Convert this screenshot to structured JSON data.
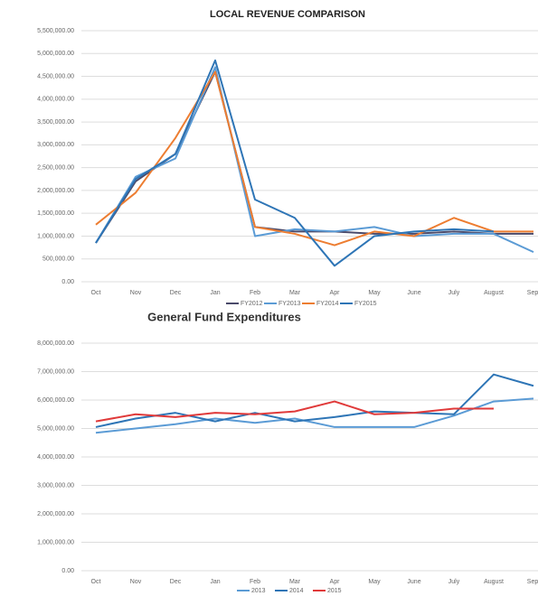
{
  "chart_data": [
    {
      "type": "line",
      "title": "LOCAL REVENUE COMPARISON",
      "categories": [
        "Oct",
        "Nov",
        "Dec",
        "Jan",
        "Feb",
        "Mar",
        "Apr",
        "May",
        "June",
        "July",
        "August",
        "Sept"
      ],
      "ylim": [
        0,
        5500000
      ],
      "yticks": [
        {
          "value": 0,
          "label": "0.00"
        },
        {
          "value": 500000,
          "label": "500,000.00"
        },
        {
          "value": 1000000,
          "label": "1,000,000.00"
        },
        {
          "value": 1500000,
          "label": "1,500,000.00"
        },
        {
          "value": 2000000,
          "label": "2,000,000.00"
        },
        {
          "value": 2500000,
          "label": "2,500,000.00"
        },
        {
          "value": 3000000,
          "label": "3,000,000.00"
        },
        {
          "value": 3500000,
          "label": "3,500,000.00"
        },
        {
          "value": 4000000,
          "label": "4,000,000.00"
        },
        {
          "value": 4500000,
          "label": "4,500,000.00"
        },
        {
          "value": 5000000,
          "label": "5,000,000.00"
        },
        {
          "value": 5500000,
          "label": "5,500,000.00"
        }
      ],
      "grid": true,
      "series": [
        {
          "name": "FY2012",
          "color": "#4a4a6a",
          "values": [
            850000,
            2200000,
            2800000,
            4600000,
            1200000,
            1100000,
            1100000,
            1050000,
            1050000,
            1100000,
            1050000,
            1050000
          ]
        },
        {
          "name": "FY2013",
          "color": "#5b9bd5",
          "values": [
            850000,
            2300000,
            2700000,
            4700000,
            1000000,
            1150000,
            1100000,
            1200000,
            1000000,
            1050000,
            1050000,
            650000
          ]
        },
        {
          "name": "FY2014",
          "color": "#ed7d31",
          "values": [
            1250000,
            1950000,
            3150000,
            4600000,
            1200000,
            1050000,
            800000,
            1100000,
            1000000,
            1400000,
            1100000,
            1100000
          ]
        },
        {
          "name": "FY2015",
          "color": "#2e75b6",
          "values": [
            850000,
            2250000,
            2800000,
            4850000,
            1800000,
            1400000,
            350000,
            1000000,
            1100000,
            1150000,
            1100000,
            null
          ]
        }
      ]
    },
    {
      "type": "line",
      "title": "General Fund Expenditures",
      "categories": [
        "Oct",
        "Nov",
        "Dec",
        "Jan",
        "Feb",
        "Mar",
        "Apr",
        "May",
        "June",
        "July",
        "August",
        "Sept"
      ],
      "ylim": [
        0,
        8000000
      ],
      "yticks": [
        {
          "value": 0,
          "label": "0.00"
        },
        {
          "value": 1000000,
          "label": "1,000,000.00"
        },
        {
          "value": 2000000,
          "label": "2,000,000.00"
        },
        {
          "value": 3000000,
          "label": "3,000,000.00"
        },
        {
          "value": 4000000,
          "label": "4,000,000.00"
        },
        {
          "value": 5000000,
          "label": "5,000,000.00"
        },
        {
          "value": 6000000,
          "label": "6,000,000.00"
        },
        {
          "value": 7000000,
          "label": "7,000,000.00"
        },
        {
          "value": 8000000,
          "label": "8,000,000.00"
        }
      ],
      "grid": true,
      "series": [
        {
          "name": "2013",
          "color": "#5b9bd5",
          "values": [
            4850000,
            5000000,
            5150000,
            5350000,
            5200000,
            5350000,
            5050000,
            5050000,
            5050000,
            5450000,
            5950000,
            6050000
          ]
        },
        {
          "name": "2014",
          "color": "#2e75b6",
          "values": [
            5050000,
            5350000,
            5550000,
            5250000,
            5550000,
            5250000,
            5400000,
            5600000,
            5550000,
            5500000,
            6900000,
            6500000
          ]
        },
        {
          "name": "2015",
          "color": "#e03a3a",
          "values": [
            5250000,
            5500000,
            5400000,
            5550000,
            5500000,
            5600000,
            5950000,
            5500000,
            5550000,
            5700000,
            5700000,
            null
          ]
        }
      ]
    }
  ]
}
